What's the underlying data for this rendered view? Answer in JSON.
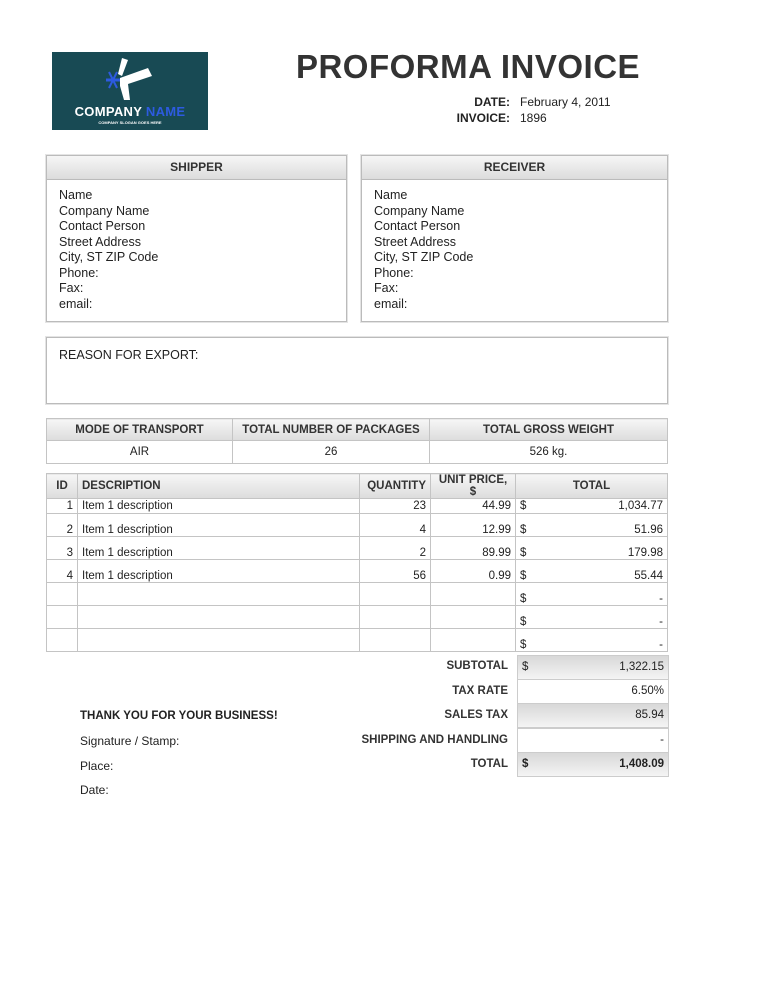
{
  "logo": {
    "name_part1": "COMPANY",
    "name_part2": "NAME",
    "slogan": "COMPANY SLOGAN GOES HERE",
    "bg_color": "#184a54",
    "accent_color": "#2d5be0"
  },
  "title": "PROFORMA INVOICE",
  "meta": {
    "date_label": "DATE:",
    "date": "February 4, 2011",
    "invoice_label": "INVOICE:",
    "invoice": "1896"
  },
  "shipper": {
    "heading": "SHIPPER",
    "lines": [
      "Name",
      "Company Name",
      "Contact Person",
      "Street Address",
      "City, ST  ZIP Code",
      "Phone:",
      "Fax:",
      "email:"
    ]
  },
  "receiver": {
    "heading": "RECEIVER",
    "lines": [
      "Name",
      "Company Name",
      "Contact Person",
      "Street Address",
      "City, ST  ZIP Code",
      "Phone:",
      "Fax:",
      "email:"
    ]
  },
  "reason": {
    "label": "REASON FOR EXPORT:"
  },
  "transport": {
    "headers": [
      "MODE OF TRANSPORT",
      "TOTAL NUMBER OF PACKAGES",
      "TOTAL GROSS WEIGHT"
    ],
    "values": [
      "AIR",
      "26",
      "526 kg."
    ]
  },
  "items": {
    "headers": [
      "ID",
      "DESCRIPTION",
      "QUANTITY",
      "UNIT PRICE, $",
      "TOTAL"
    ],
    "rows": [
      {
        "id": "1",
        "description": "Item 1 description",
        "quantity": "23",
        "unit_price": "44.99",
        "currency": "$",
        "total": "1,034.77"
      },
      {
        "id": "2",
        "description": "Item 1 description",
        "quantity": "4",
        "unit_price": "12.99",
        "currency": "$",
        "total": "51.96"
      },
      {
        "id": "3",
        "description": "Item 1 description",
        "quantity": "2",
        "unit_price": "89.99",
        "currency": "$",
        "total": "179.98"
      },
      {
        "id": "4",
        "description": "Item 1 description",
        "quantity": "56",
        "unit_price": "0.99",
        "currency": "$",
        "total": "55.44"
      },
      {
        "id": "",
        "description": "",
        "quantity": "",
        "unit_price": "",
        "currency": "$",
        "total": "-"
      },
      {
        "id": "",
        "description": "",
        "quantity": "",
        "unit_price": "",
        "currency": "$",
        "total": "-"
      },
      {
        "id": "",
        "description": "",
        "quantity": "",
        "unit_price": "",
        "currency": "$",
        "total": "-"
      }
    ]
  },
  "totals": {
    "subtotal_label": "SUBTOTAL",
    "subtotal_currency": "$",
    "subtotal": "1,322.15",
    "tax_rate_label": "TAX RATE",
    "tax_rate": "6.50%",
    "sales_tax_label": "SALES TAX",
    "sales_tax": "85.94",
    "shipping_label": "SHIPPING AND HANDLING",
    "shipping": "-",
    "total_label": "TOTAL",
    "total_currency": "$",
    "total": "1,408.09"
  },
  "footer": {
    "thanks": "THANK YOU FOR YOUR BUSINESS!",
    "signature": "Signature / Stamp:",
    "place": "Place:",
    "date": "Date:"
  }
}
